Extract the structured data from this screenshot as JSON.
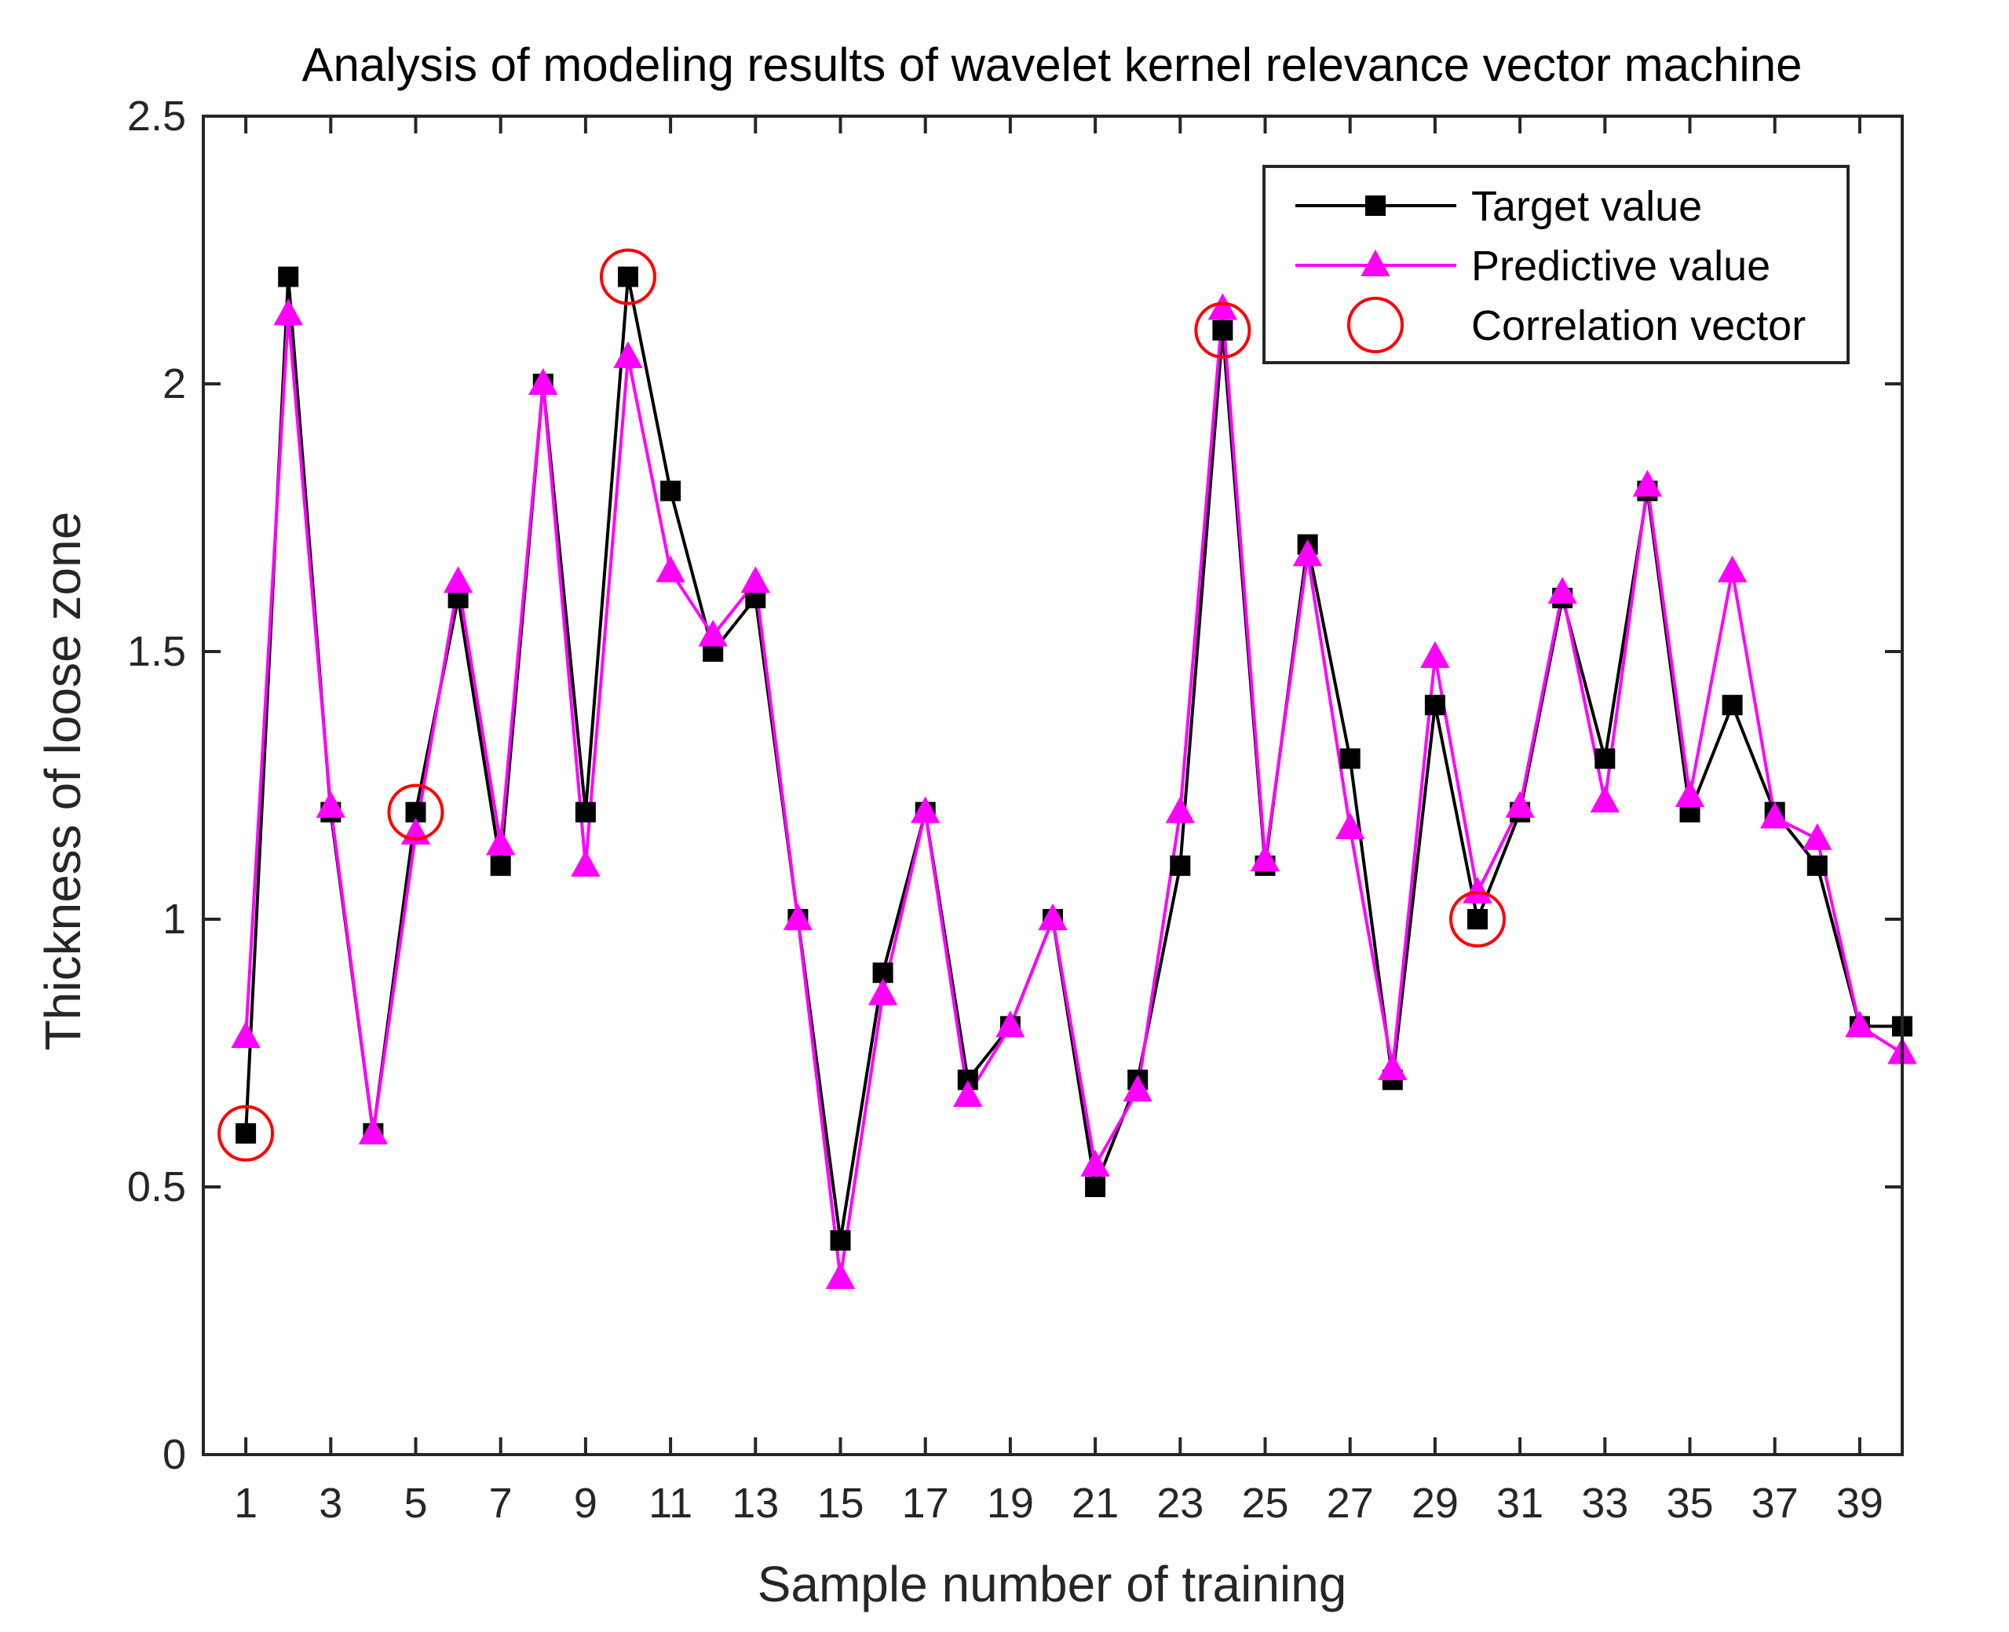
{
  "chart_data": {
    "type": "line",
    "title": "Analysis of modeling results of wavelet kernel relevance vector machine",
    "xlabel": "Sample number of training",
    "ylabel": "Thickness of loose zone",
    "xlim": [
      0,
      40
    ],
    "ylim": [
      0,
      2.5
    ],
    "xticks": [
      1,
      3,
      5,
      7,
      9,
      11,
      13,
      15,
      17,
      19,
      21,
      23,
      25,
      27,
      29,
      31,
      33,
      35,
      37,
      39
    ],
    "yticks": [
      0,
      0.5,
      1,
      1.5,
      2,
      2.5
    ],
    "ytick_labels": [
      "0",
      "0.5",
      "1",
      "1.5",
      "2",
      "2.5"
    ],
    "x": [
      1,
      2,
      3,
      4,
      5,
      6,
      7,
      8,
      9,
      10,
      11,
      12,
      13,
      14,
      15,
      16,
      17,
      18,
      19,
      20,
      21,
      22,
      23,
      24,
      25,
      26,
      27,
      28,
      29,
      30,
      31,
      32,
      33,
      34,
      35,
      36,
      37,
      38,
      39,
      40
    ],
    "series": [
      {
        "name": "Target value",
        "color": "#000000",
        "marker": "square",
        "values": [
          0.6,
          2.2,
          1.2,
          0.6,
          1.2,
          1.6,
          1.1,
          2.0,
          1.2,
          2.2,
          1.8,
          1.5,
          1.6,
          1.0,
          0.4,
          0.9,
          1.2,
          0.7,
          0.8,
          1.0,
          0.5,
          0.7,
          1.1,
          2.1,
          1.1,
          1.7,
          1.3,
          0.7,
          1.4,
          1.0,
          1.2,
          1.6,
          1.3,
          1.8,
          1.2,
          1.4,
          1.2,
          1.1,
          0.8,
          0.8
        ]
      },
      {
        "name": "Predictive value",
        "color": "#ff00ff",
        "marker": "triangle",
        "values": [
          0.78,
          2.13,
          1.21,
          0.6,
          1.16,
          1.63,
          1.14,
          2.0,
          1.1,
          2.05,
          1.65,
          1.53,
          1.63,
          1.0,
          0.33,
          0.86,
          1.2,
          0.67,
          0.8,
          1.0,
          0.54,
          0.68,
          1.2,
          2.14,
          1.11,
          1.68,
          1.17,
          0.72,
          1.49,
          1.05,
          1.21,
          1.61,
          1.22,
          1.81,
          1.23,
          1.65,
          1.19,
          1.15,
          0.8,
          0.75
        ]
      },
      {
        "name": "Correlation vector",
        "color": "#ff0000",
        "marker": "circle",
        "x": [
          1,
          5,
          10,
          24,
          30
        ],
        "values": [
          0.6,
          1.2,
          2.2,
          2.1,
          1.0
        ]
      }
    ],
    "legend": {
      "position": "top-right",
      "entries": [
        "Target value",
        "Predictive value",
        "Correlation vector"
      ]
    }
  }
}
